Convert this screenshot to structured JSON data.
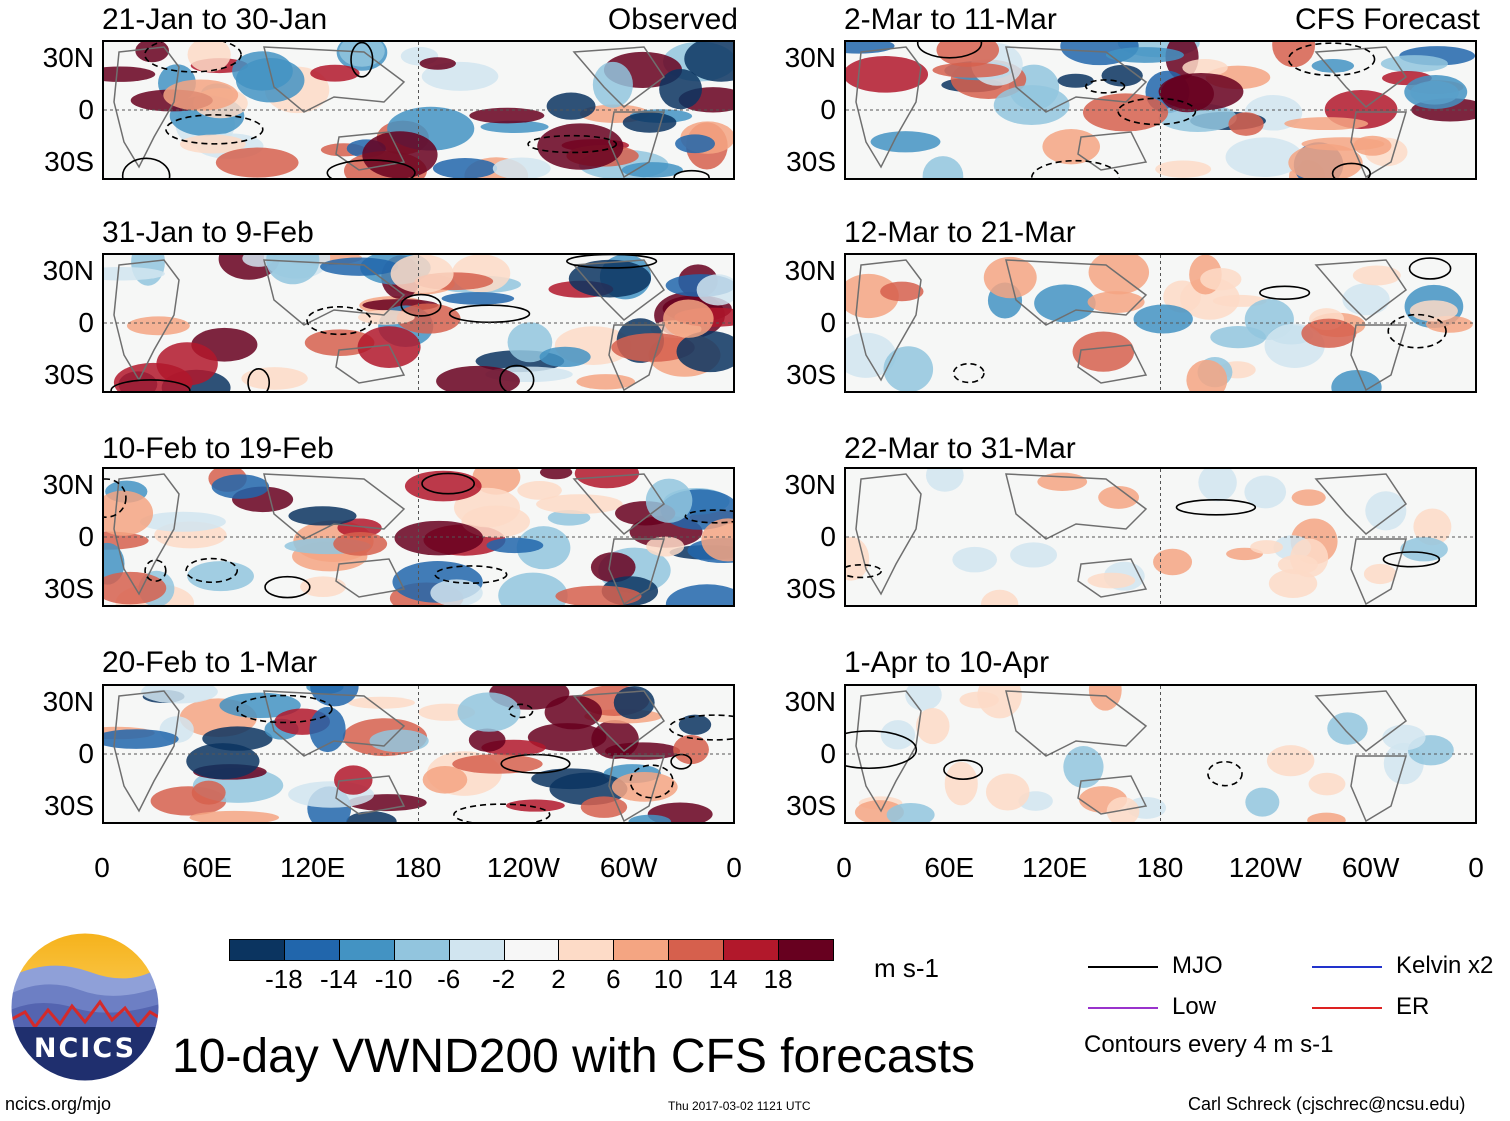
{
  "observed_label": "Observed",
  "forecast_label": "CFS Forecast",
  "title": "10-day VWND200 with CFS forecasts",
  "units": "m s-1",
  "lat_labels": [
    "30N",
    "0",
    "30S"
  ],
  "lon_labels": [
    "0",
    "60E",
    "120E",
    "180",
    "120W",
    "60W",
    "0"
  ],
  "colorbar": {
    "ticks": [
      "-18",
      "-14",
      "-10",
      "-6",
      "-2",
      "2",
      "6",
      "10",
      "14",
      "18"
    ],
    "colors": [
      "#0b3460",
      "#2166ac",
      "#4393c3",
      "#92c5de",
      "#d1e5f0",
      "#f7f7f7",
      "#fddbc7",
      "#f4a582",
      "#d6604d",
      "#b2182b",
      "#67001f"
    ]
  },
  "legend": {
    "items": [
      {
        "label": "MJO",
        "color": "#000000"
      },
      {
        "label": "Kelvin x2",
        "color": "#2233cc"
      },
      {
        "label": "Low",
        "color": "#9933cc"
      },
      {
        "label": "ER",
        "color": "#dd2222"
      }
    ],
    "contour_note": "Contours every 4 m s-1"
  },
  "footer": {
    "left": "ncics.org/mjo",
    "center": "Thu 2017-03-02 1121 UTC",
    "right": "Carl Schreck (cjschrec@ncsu.edu)"
  },
  "logo": {
    "text": "NCICS"
  },
  "chart_data": {
    "type": "heatmap",
    "title": "10-day VWND200 with CFS forecasts",
    "variable": "VWND200",
    "units": "m s-1",
    "contour_interval": 4,
    "x_ticks": [
      "0",
      "60E",
      "120E",
      "180",
      "120W",
      "60W",
      "0"
    ],
    "y_ticks": [
      "30N",
      "0",
      "30S"
    ],
    "xlim": [
      0,
      360
    ],
    "ylim": [
      -40,
      40
    ],
    "color_levels": [
      -18,
      -14,
      -10,
      -6,
      -2,
      2,
      6,
      10,
      14,
      18
    ],
    "panels": [
      {
        "period": "21-Jan to 30-Jan",
        "source": "Observed"
      },
      {
        "period": "31-Jan to 9-Feb",
        "source": "Observed"
      },
      {
        "period": "10-Feb to 19-Feb",
        "source": "Observed"
      },
      {
        "period": "20-Feb to 1-Mar",
        "source": "Observed"
      },
      {
        "period": "2-Mar to 11-Mar",
        "source": "CFS Forecast"
      },
      {
        "period": "12-Mar to 21-Mar",
        "source": "CFS Forecast"
      },
      {
        "period": "22-Mar to 31-Mar",
        "source": "CFS Forecast"
      },
      {
        "period": "1-Apr to 10-Apr",
        "source": "CFS Forecast"
      }
    ]
  }
}
